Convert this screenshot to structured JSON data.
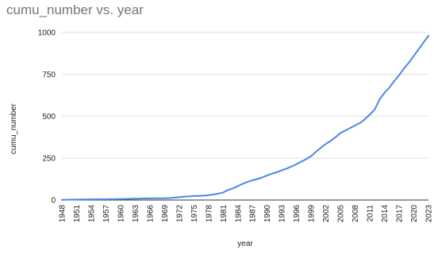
{
  "chart_data": {
    "type": "line",
    "title": "cumu_number vs. year",
    "xlabel": "year",
    "ylabel": "cumu_number",
    "ylim": [
      0,
      1000
    ],
    "yticks": [
      0,
      250,
      500,
      750,
      1000
    ],
    "xticks": [
      "1948",
      "1951",
      "1954",
      "1957",
      "1960",
      "1963",
      "1966",
      "1969",
      "1972",
      "1975",
      "1978",
      "1981",
      "1984",
      "1987",
      "1990",
      "1993",
      "1996",
      "1999",
      "2002",
      "2005",
      "2008",
      "2011",
      "2014",
      "2017",
      "2020",
      "2023"
    ],
    "grid": true,
    "legend": "none",
    "line_color": "#4a86e8",
    "series": [
      {
        "x": [
          1948,
          1951,
          1954,
          1957,
          1960,
          1963,
          1966,
          1969,
          1970,
          1971,
          1972,
          1973,
          1974,
          1975,
          1976,
          1977,
          1978,
          1979,
          1980,
          1981,
          1982,
          1983,
          1984,
          1985,
          1986,
          1987,
          1988,
          1989,
          1990,
          1991,
          1992,
          1993,
          1994,
          1995,
          1996,
          1997,
          1998,
          1999,
          2000,
          2001,
          2002,
          2003,
          2004,
          2005,
          2006,
          2007,
          2008,
          2009,
          2010,
          2011,
          2012,
          2013,
          2014,
          2015,
          2016,
          2017,
          2018,
          2019,
          2020,
          2021,
          2022,
          2023
        ],
        "y": [
          1,
          3,
          4,
          5,
          6,
          8,
          10,
          11,
          12,
          14,
          17,
          20,
          22,
          24,
          25,
          26,
          29,
          33,
          38,
          45,
          60,
          70,
          83,
          97,
          108,
          118,
          125,
          135,
          147,
          157,
          166,
          177,
          188,
          200,
          214,
          229,
          244,
          262,
          288,
          312,
          335,
          353,
          375,
          400,
          415,
          430,
          445,
          460,
          482,
          510,
          540,
          600,
          640,
          670,
          710,
          745,
          785,
          820,
          860,
          900,
          940,
          980
        ]
      }
    ]
  }
}
